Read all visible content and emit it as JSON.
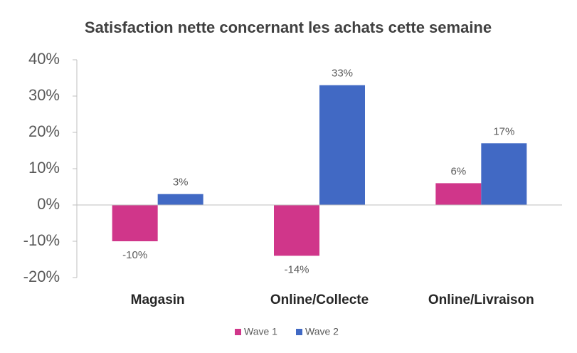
{
  "chart_data": {
    "type": "bar",
    "title": "Satisfaction nette concernant les achats cette semaine",
    "categories": [
      "Magasin",
      "Online/Collecte",
      "Online/Livraison"
    ],
    "series": [
      {
        "name": "Wave 1",
        "color": "#d0368a",
        "values": [
          -10,
          -14,
          6
        ],
        "value_labels": [
          "-10%",
          "-14%",
          "6%"
        ]
      },
      {
        "name": "Wave 2",
        "color": "#4169c4",
        "values": [
          3,
          33,
          17
        ],
        "value_labels": [
          "3%",
          "33%",
          "17%"
        ]
      }
    ],
    "ylim": [
      -20,
      40
    ],
    "yticks": [
      {
        "value": -20,
        "label": "-20%"
      },
      {
        "value": -10,
        "label": "-10%"
      },
      {
        "value": 0,
        "label": "0%"
      },
      {
        "value": 10,
        "label": "10%"
      },
      {
        "value": 20,
        "label": "20%"
      },
      {
        "value": 30,
        "label": "30%"
      },
      {
        "value": 40,
        "label": "40%"
      }
    ],
    "legend": "bottom"
  }
}
